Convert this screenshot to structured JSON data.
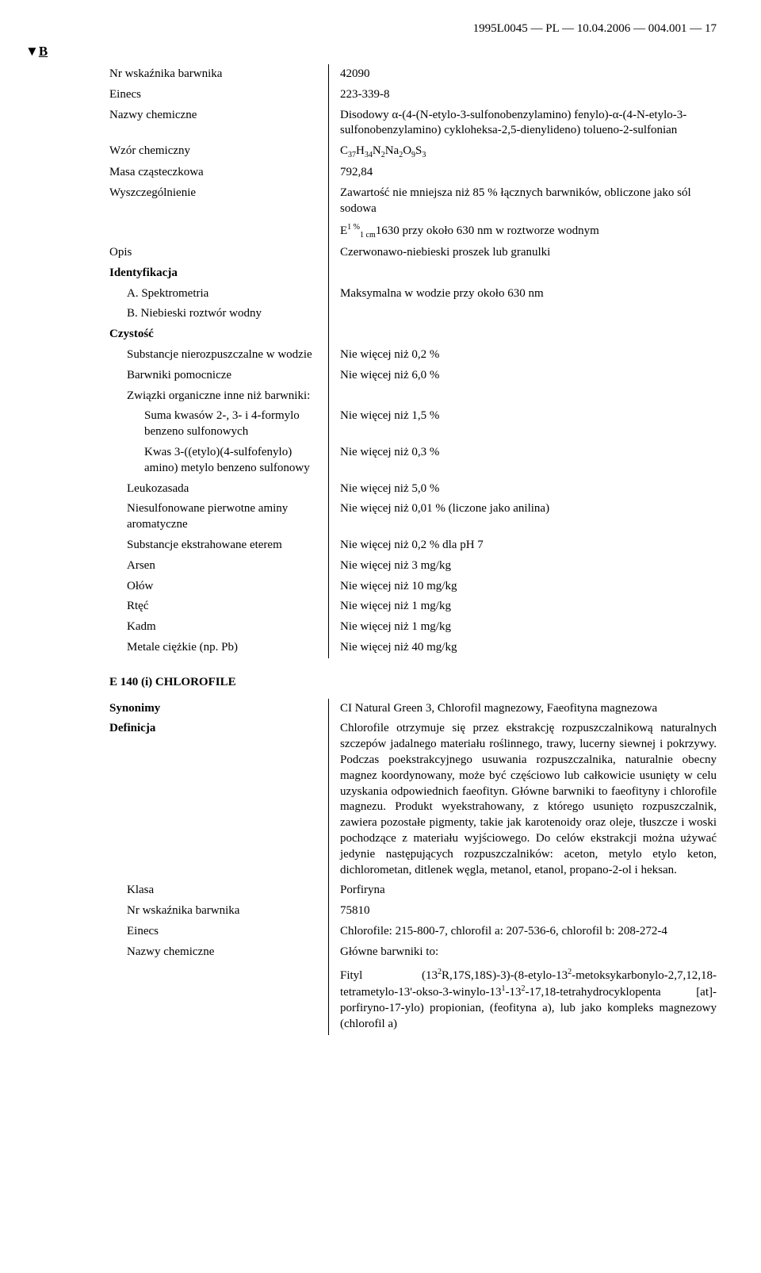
{
  "header": "1995L0045 — PL — 10.04.2006 — 004.001 — 17",
  "marker_prefix": "▼",
  "marker_letter": "B",
  "rows1": [
    {
      "l": "Nr wskaźnika barwnika",
      "r": "42090"
    },
    {
      "l": "Einecs",
      "r": "223-339-8"
    },
    {
      "l": "Nazwy chemiczne",
      "r": "Disodowy α-(4-(N-etylo-3-sulfonobenzylamino) fenylo)-α-(4-N-etylo-3-sulfonobenzylamino) cykloheksa-2,5-dienylideno) tolueno-2-sulfonian"
    }
  ],
  "formula_label": "Wzór chemiczny",
  "formula": {
    "p": [
      "C",
      "37",
      "H",
      "34",
      "N",
      "2",
      "Na",
      "2",
      "O",
      "9",
      "S",
      "3"
    ]
  },
  "rows2": [
    {
      "l": "Masa cząsteczkowa",
      "r": "792,84"
    },
    {
      "l": "Wyszczególnienie",
      "r": "Zawartość nie mniejsza niż 85 % łącznych barwników, obliczone jako sól sodowa"
    }
  ],
  "e_line": {
    "pre": "E",
    "sup": "1 %",
    "sub": "1 cm",
    "rest": "1630   przy około 630 nm w roztworze wodnym"
  },
  "opis": {
    "l": "Opis",
    "r": "Czerwonawo-niebieski proszek lub granulki"
  },
  "ident_heading": "Identyfikacja",
  "ident_rows": [
    {
      "l": "A. Spektrometria",
      "r": "Maksymalna w wodzie przy około 630 nm",
      "indent": 1
    },
    {
      "l": "B. Niebieski roztwór wodny",
      "r": "",
      "indent": 1
    }
  ],
  "cz_heading": "Czystość",
  "cz_rows": [
    {
      "l": "Substancje nierozpuszczalne w wodzie",
      "r": "Nie więcej niż 0,2 %",
      "indent": 1
    },
    {
      "l": "Barwniki pomocnicze",
      "r": "Nie więcej niż 6,0 %",
      "indent": 1
    },
    {
      "l": "Związki organiczne inne niż barwniki:",
      "r": "",
      "indent": 1
    },
    {
      "l": "Suma kwasów 2-, 3- i 4-formylo benzeno sulfonowych",
      "r": "Nie więcej niż 1,5 %",
      "indent": 2
    },
    {
      "l": "Kwas 3-((etylo)(4-sulfofenylo) amino) metylo benzeno sulfonowy",
      "r": "Nie więcej niż 0,3 %",
      "indent": 2
    },
    {
      "l": "Leukozasada",
      "r": "Nie więcej niż 5,0 %",
      "indent": 1
    },
    {
      "l": "Niesulfonowane pierwotne aminy aromatyczne",
      "r": "Nie więcej niż 0,01 % (liczone jako anilina)",
      "indent": 1
    },
    {
      "l": "Substancje ekstrahowane eterem",
      "r": "Nie więcej niż 0,2 % dla pH 7",
      "indent": 1
    },
    {
      "l": "Arsen",
      "r": "Nie więcej niż 3 mg/kg",
      "indent": 1
    },
    {
      "l": "Ołów",
      "r": "Nie więcej niż 10 mg/kg",
      "indent": 1
    },
    {
      "l": "Rtęć",
      "r": "Nie więcej niż 1 mg/kg",
      "indent": 1
    },
    {
      "l": "Kadm",
      "r": "Nie więcej niż 1 mg/kg",
      "indent": 1
    },
    {
      "l": "Metale ciężkie (np. Pb)",
      "r": "Nie więcej niż 40 mg/kg",
      "indent": 1
    }
  ],
  "e140_heading": "E 140 (i) CHLOROFILE",
  "syn": {
    "l": "Synonimy",
    "r": "CI Natural Green 3, Chlorofil magnezowy, Faeofityna magnezowa"
  },
  "def": {
    "l": "Definicja",
    "r": "Chlorofile otrzymuje się przez ekstrakcję rozpuszczalnikową naturalnych szczepów jadalnego materiału roślinnego, trawy, lucerny siewnej i pokrzywy. Podczas poekstrakcyjnego usuwania rozpuszczalnika, naturalnie obecny magnez koordynowany, może być częściowo lub całkowicie usunięty w celu uzyskania odpowiednich faeofityn. Główne barwniki to faeofityny i chlorofile magnezu. Produkt wyekstrahowany, z którego usunięto rozpuszczalnik, zawiera pozostałe pigmenty, takie jak karotenoidy oraz oleje, tłuszcze i woski pochodzące z materiału wyjściowego. Do celów ekstrakcji można używać jedynie następujących rozpuszczalników: aceton, metylo etylo keton, dichlorometan, ditlenek węgla, metanol, etanol, propano-2-ol i heksan."
  },
  "rows3": [
    {
      "l": "Klasa",
      "r": "Porfiryna",
      "indent": 1
    },
    {
      "l": "Nr wskaźnika barwnika",
      "r": "75810",
      "indent": 1
    },
    {
      "l": "Einecs",
      "r": "Chlorofile: 215-800-7, chlorofil a: 207-536-6, chlorofil b: 208-272-4",
      "indent": 1
    }
  ],
  "nazwy": {
    "l": "Nazwy chemiczne",
    "r": "Główne barwniki to:"
  },
  "fityl_parts": {
    "pre": "Fityl    (13",
    "s1": "2",
    "p2": "R,17S,18S)-3)-(8-etylo-13",
    "s2": "2",
    "p3": "-metoksykarbonylo-2,7,12,18-tetrametylo-13'-okso-3-winylo-13",
    "s3": "1",
    "p4": "-13",
    "s4": "2",
    "p5": "-17,18-tetrahydrocyklopenta [at]-porfiryno-17-ylo) propionian, (feofityna a), lub jako kompleks magnezowy (chlorofil a)"
  }
}
